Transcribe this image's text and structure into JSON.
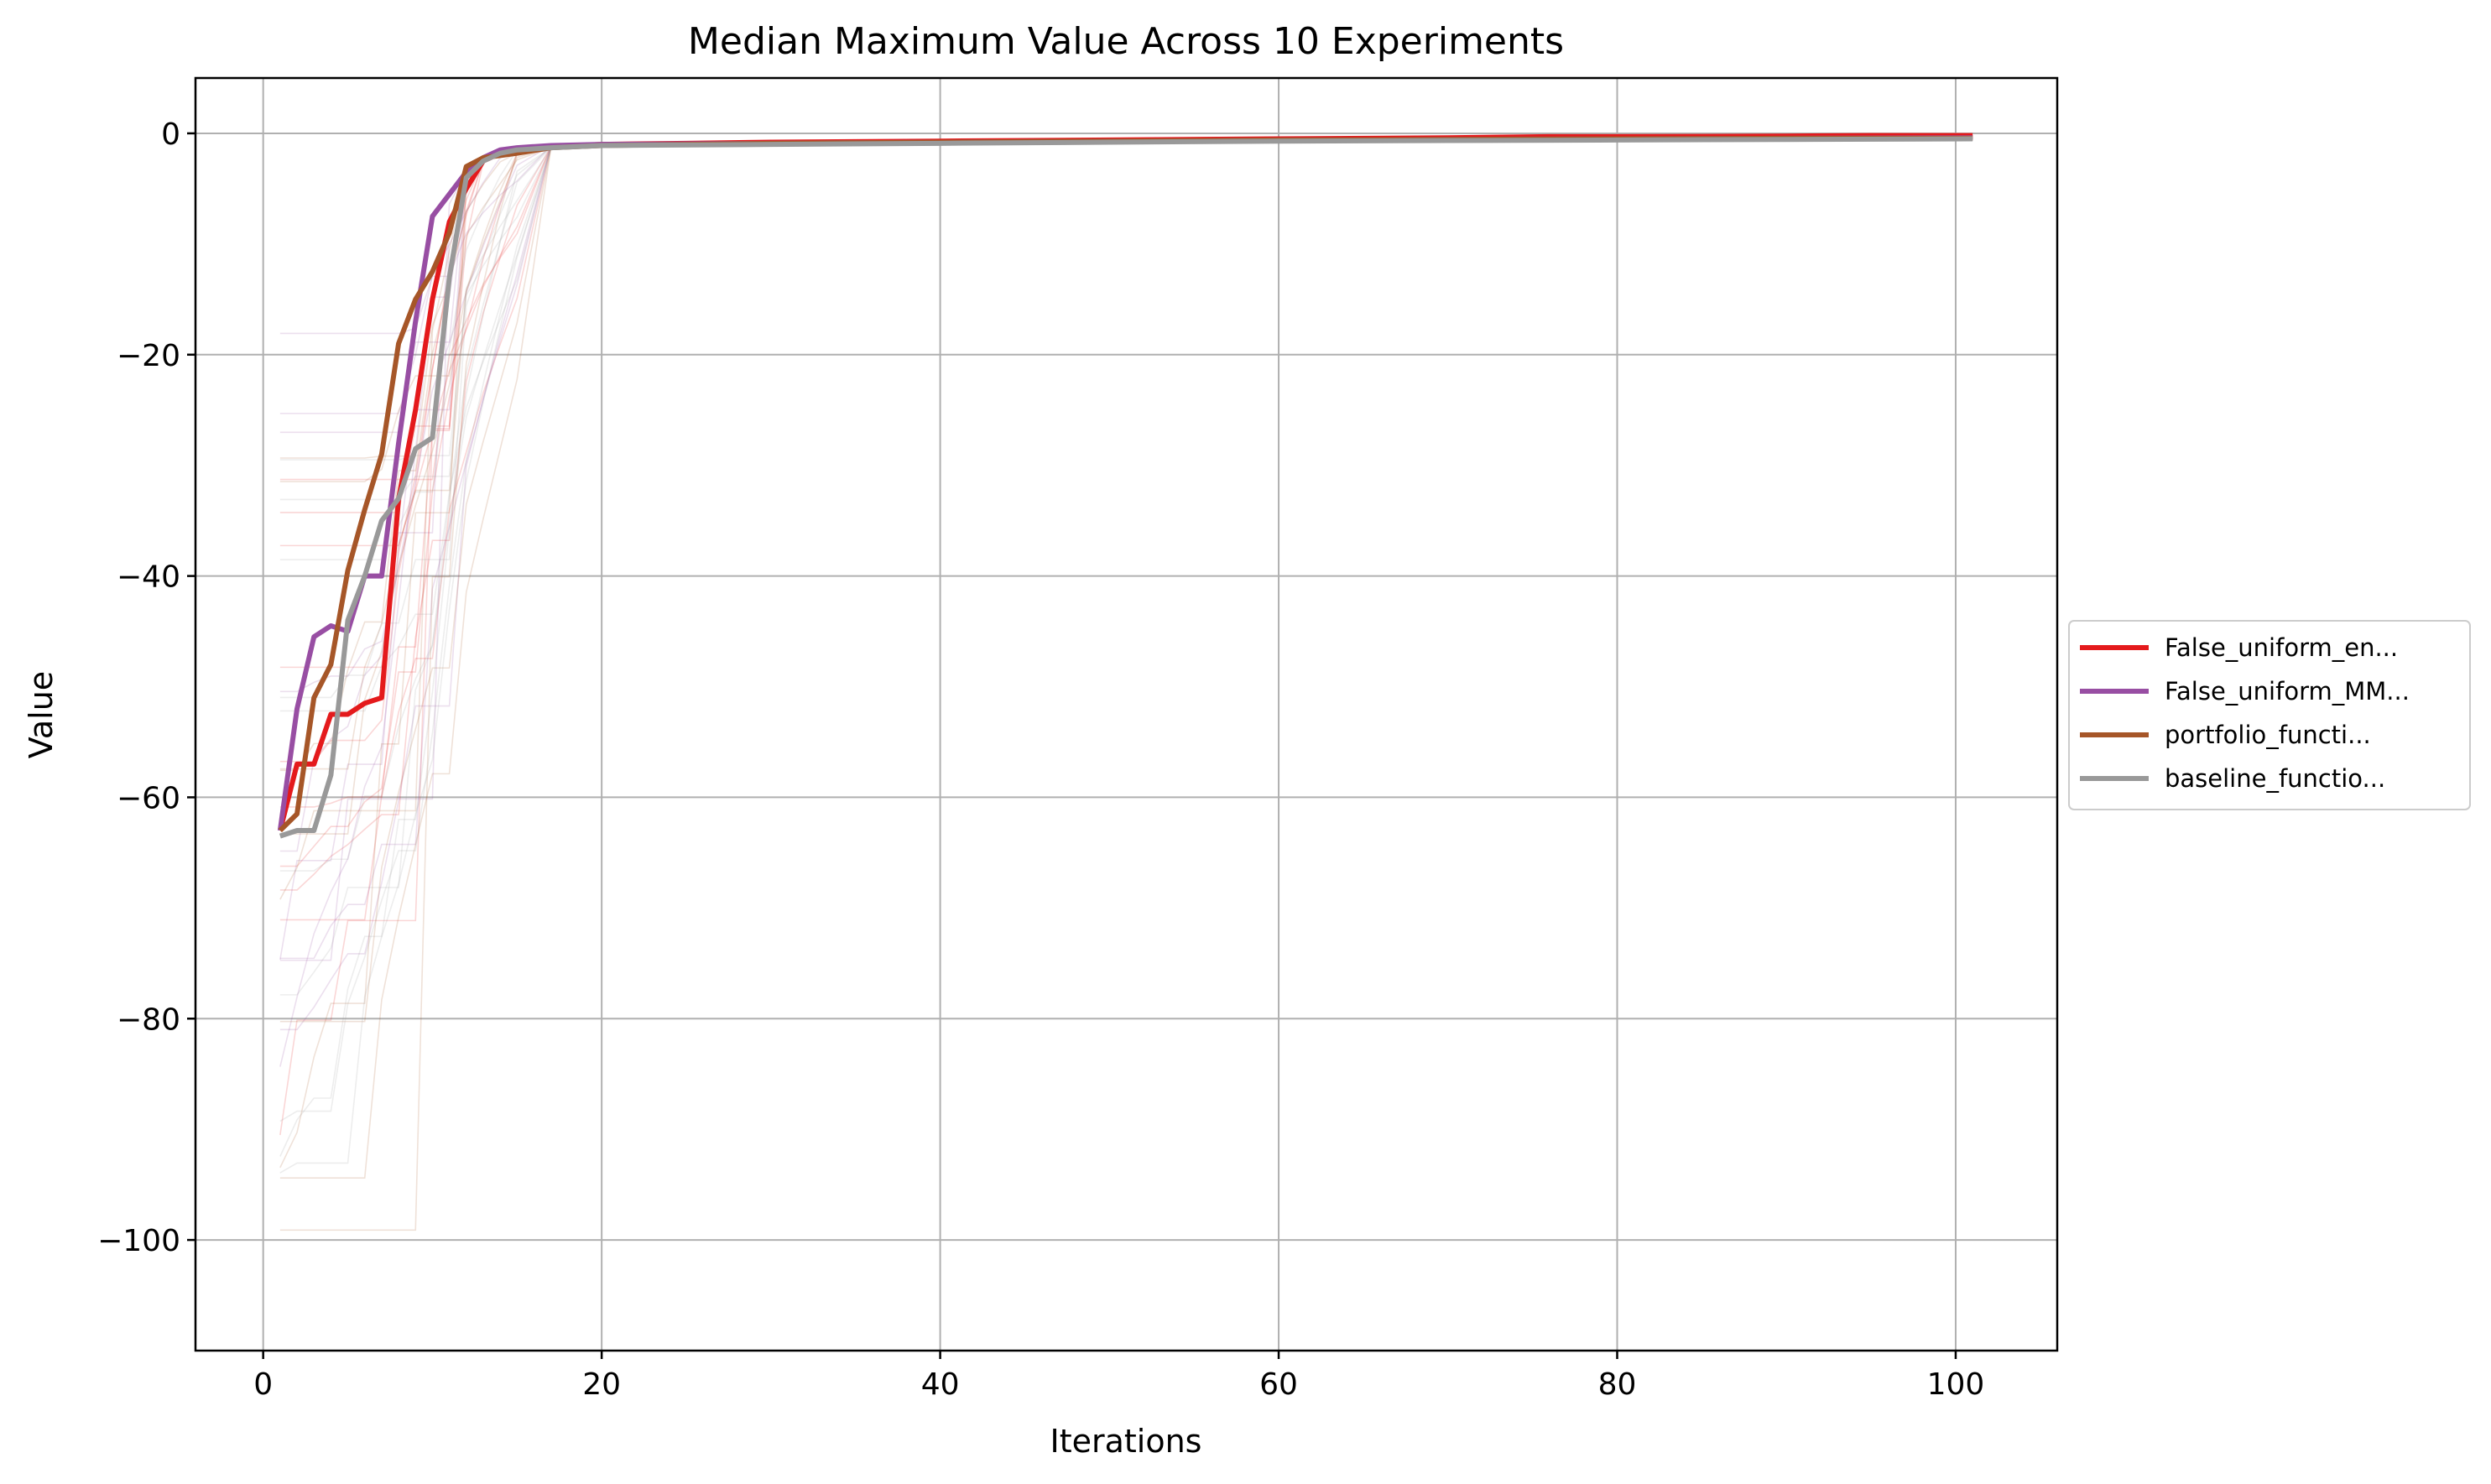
{
  "chart_data": {
    "type": "line",
    "title": "Median Maximum Value Across 10 Experiments",
    "xlabel": "Iterations",
    "ylabel": "Value",
    "xlim": [
      -4,
      106
    ],
    "ylim": [
      -110,
      5
    ],
    "xticks": [
      0,
      20,
      40,
      60,
      80,
      100
    ],
    "yticks": [
      0,
      -20,
      -40,
      -60,
      -80,
      -100
    ],
    "xtick_labels": [
      "0",
      "20",
      "40",
      "60",
      "80",
      "100"
    ],
    "ytick_labels": [
      "0",
      "−20",
      "−40",
      "−60",
      "−80",
      "−100"
    ],
    "grid": true,
    "legend_position": "center-right, outside plot",
    "series": [
      {
        "name": "False_uniform_en...",
        "color": "#e41a1c",
        "x": [
          1,
          2,
          3,
          4,
          5,
          6,
          7,
          8,
          9,
          10,
          11,
          12,
          13,
          14,
          15,
          17,
          20,
          25,
          30,
          40,
          50,
          60,
          70,
          76,
          80,
          90,
          95,
          101
        ],
        "y": [
          -63,
          -57,
          -57,
          -52.5,
          -52.5,
          -51.5,
          -51,
          -33,
          -25,
          -15,
          -8,
          -5,
          -2.5,
          -1.8,
          -1.5,
          -1.2,
          -1.0,
          -0.9,
          -0.8,
          -0.7,
          -0.6,
          -0.5,
          -0.4,
          -0.3,
          -0.3,
          -0.25,
          -0.2,
          -0.2
        ]
      },
      {
        "name": "False_uniform_MM...",
        "color": "#984ea3",
        "x": [
          1,
          2,
          3,
          4,
          5,
          6,
          7,
          8,
          9,
          10,
          11,
          12,
          13,
          14,
          15,
          17,
          20,
          30,
          40,
          50,
          60,
          70,
          80,
          90,
          101
        ],
        "y": [
          -63,
          -52,
          -45.5,
          -44.5,
          -45,
          -40,
          -40,
          -28,
          -17,
          -7.5,
          -5.5,
          -3.5,
          -2.2,
          -1.5,
          -1.3,
          -1.1,
          -1.0,
          -0.9,
          -0.8,
          -0.7,
          -0.6,
          -0.55,
          -0.5,
          -0.45,
          -0.4
        ]
      },
      {
        "name": "portfolio_functi...",
        "color": "#a65628",
        "x": [
          1,
          2,
          3,
          4,
          5,
          6,
          7,
          8,
          9,
          10,
          11,
          12,
          13,
          14,
          15,
          17,
          20,
          30,
          40,
          50,
          60,
          70,
          80,
          90,
          101
        ],
        "y": [
          -63,
          -61.5,
          -51,
          -48,
          -39.5,
          -34,
          -29,
          -19,
          -15,
          -12.5,
          -9,
          -3,
          -2.2,
          -2,
          -1.8,
          -1.3,
          -1.1,
          -0.9,
          -0.8,
          -0.7,
          -0.6,
          -0.55,
          -0.5,
          -0.45,
          -0.45
        ]
      },
      {
        "name": "baseline_functio...",
        "color": "#999999",
        "x": [
          1,
          2,
          3,
          4,
          5,
          6,
          7,
          8,
          9,
          10,
          11,
          12,
          13,
          14,
          15,
          17,
          20,
          30,
          40,
          50,
          60,
          70,
          80,
          90,
          101
        ],
        "y": [
          -63.5,
          -63,
          -63,
          -58,
          -44,
          -40,
          -35,
          -33,
          -28.5,
          -27.5,
          -13,
          -4,
          -2.5,
          -1.8,
          -1.5,
          -1.3,
          -1.1,
          -1.0,
          -0.9,
          -0.8,
          -0.7,
          -0.65,
          -0.6,
          -0.55,
          -0.5
        ]
      }
    ]
  }
}
